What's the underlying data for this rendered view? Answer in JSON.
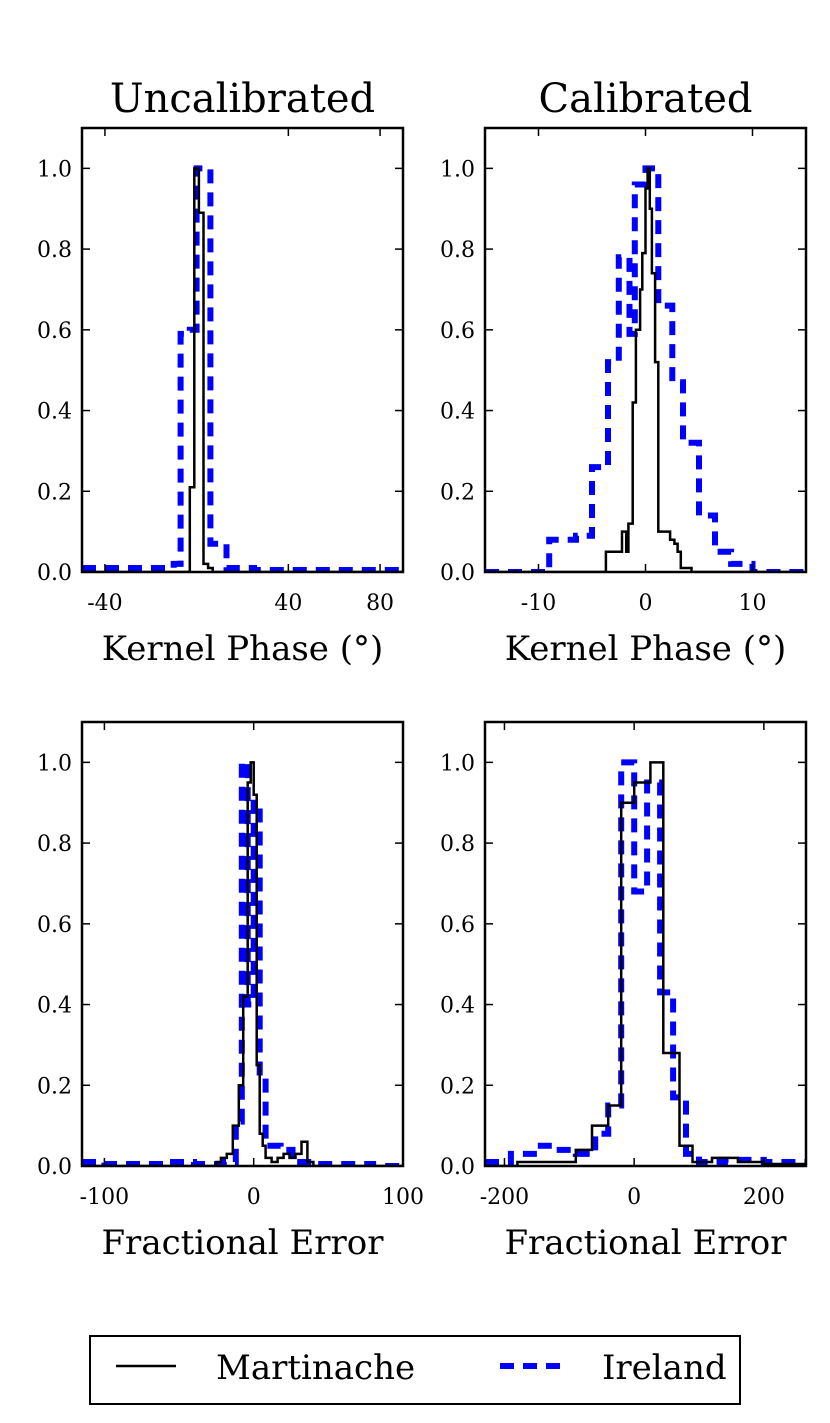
{
  "legend": {
    "martinache_label": "Martinache",
    "ireland_label": "Ireland"
  },
  "colors": {
    "martinache": "#000000",
    "ireland": "#0000ff"
  },
  "chart_data": [
    {
      "type": "step-histogram",
      "title": "Uncalibrated",
      "xlabel": "Kernel Phase (°)",
      "ylabel": "",
      "xlim": [
        -50,
        90
      ],
      "ylim": [
        0,
        1.1
      ],
      "xticks": [
        -40,
        40,
        80
      ],
      "xtick_labels": [
        "-40",
        "40",
        "80"
      ],
      "yticks": [
        0,
        0.2,
        0.4,
        0.6,
        0.8,
        1.0
      ],
      "ytick_labels": [
        "0.0",
        "0.2",
        "0.4",
        "0.6",
        "0.8",
        "1.0"
      ],
      "series": [
        {
          "name": "Martinache",
          "x": [
            -50,
            -3,
            -1,
            1,
            3,
            5,
            7,
            10,
            90
          ],
          "values": [
            0,
            0.21,
            1.0,
            0.89,
            0.02,
            0.01,
            0,
            0
          ]
        },
        {
          "name": "Ireland",
          "x": [
            -50,
            -10,
            -7,
            -3,
            0,
            3,
            6,
            13,
            18,
            25,
            40,
            50,
            90
          ],
          "values": [
            0.01,
            0.02,
            0.59,
            0.6,
            1.0,
            0.99,
            0.07,
            0.01,
            0.01,
            0.005,
            0.005,
            0.005
          ]
        }
      ]
    },
    {
      "type": "step-histogram",
      "title": "Calibrated",
      "xlabel": "Kernel Phase (°)",
      "ylabel": "",
      "xlim": [
        -15,
        15
      ],
      "ylim": [
        0,
        1.1
      ],
      "xticks": [
        -10,
        0,
        10
      ],
      "xtick_labels": [
        "-10",
        "0",
        "10"
      ],
      "yticks": [
        0,
        0.2,
        0.4,
        0.6,
        0.8,
        1.0
      ],
      "ytick_labels": [
        "0.0",
        "0.2",
        "0.4",
        "0.6",
        "0.8",
        "1.0"
      ],
      "series": [
        {
          "name": "Martinache",
          "x": [
            -15,
            -3.7,
            -2.2,
            -1.8,
            -1.6,
            -1.2,
            -0.9,
            -0.5,
            -0.3,
            0,
            0.2,
            0.4,
            0.6,
            0.9,
            1.2,
            2.3,
            2.7,
            3.0,
            3.3,
            4.3,
            15
          ],
          "values": [
            0,
            0.05,
            0.1,
            0.05,
            0.12,
            0.42,
            0.6,
            0.7,
            0.79,
            0.95,
            1.0,
            0.9,
            0.74,
            0.52,
            0.1,
            0.08,
            0.07,
            0.05,
            0.01,
            0
          ]
        },
        {
          "name": "Ireland",
          "x": [
            -15,
            -9,
            -6.5,
            -5,
            -3.5,
            -2.5,
            -1.5,
            -1.0,
            0,
            1.2,
            2.5,
            3.5,
            5,
            6.5,
            8,
            10,
            15
          ],
          "values": [
            0,
            0.08,
            0.09,
            0.26,
            0.52,
            0.78,
            0.59,
            0.96,
            1.0,
            0.66,
            0.47,
            0.32,
            0.14,
            0.05,
            0.02,
            0
          ]
        }
      ]
    },
    {
      "type": "step-histogram",
      "title": "",
      "xlabel": "Fractional Error",
      "ylabel": "",
      "xlim": [
        -115,
        100
      ],
      "ylim": [
        0,
        1.1
      ],
      "xticks": [
        -100,
        0,
        100
      ],
      "xtick_labels": [
        "-100",
        "0",
        "100"
      ],
      "yticks": [
        0,
        0.2,
        0.4,
        0.6,
        0.8,
        1.0
      ],
      "ytick_labels": [
        "0.0",
        "0.2",
        "0.4",
        "0.6",
        "0.8",
        "1.0"
      ],
      "series": [
        {
          "name": "Martinache",
          "x": [
            -115,
            -25,
            -22,
            -18,
            -14,
            -10,
            -7,
            -4,
            -2,
            0,
            2,
            4,
            6,
            8,
            12,
            16,
            20,
            24,
            28,
            32,
            36,
            40,
            100
          ],
          "values": [
            0,
            0.01,
            0.02,
            0.03,
            0.1,
            0.2,
            0.42,
            0.95,
            1.0,
            0.92,
            0.25,
            0.08,
            0.05,
            0.02,
            0.01,
            0.02,
            0.03,
            0.02,
            0.03,
            0.06,
            0.01,
            0
          ]
        },
        {
          "name": "Ireland",
          "x": [
            -115,
            -100,
            -80,
            -60,
            -40,
            -20,
            -12,
            -8,
            -4,
            0,
            4,
            8,
            12,
            18,
            26,
            34,
            42,
            50,
            60,
            80,
            100
          ],
          "values": [
            0.01,
            0.005,
            0.005,
            0.01,
            0.005,
            0.01,
            0.11,
            1.0,
            0.4,
            0.9,
            0.22,
            0.05,
            0.05,
            0.04,
            0.01,
            0.01,
            0.005,
            0.005,
            0.005,
            0
          ]
        }
      ]
    },
    {
      "type": "step-histogram",
      "title": "",
      "xlabel": "Fractional Error",
      "ylabel": "",
      "xlim": [
        -230,
        265
      ],
      "ylim": [
        0,
        1.1
      ],
      "xticks": [
        -200,
        0,
        200
      ],
      "xtick_labels": [
        "-200",
        "0",
        "200"
      ],
      "yticks": [
        0,
        0.2,
        0.4,
        0.6,
        0.8,
        1.0
      ],
      "ytick_labels": [
        "0.0",
        "0.2",
        "0.4",
        "0.6",
        "0.8",
        "1.0"
      ],
      "series": [
        {
          "name": "Martinache",
          "x": [
            -230,
            -180,
            -90,
            -65,
            -40,
            -20,
            0,
            25,
            45,
            70,
            90,
            120,
            160,
            200,
            265
          ],
          "values": [
            0,
            0.01,
            0.04,
            0.1,
            0.15,
            0.9,
            0.95,
            1.0,
            0.28,
            0.05,
            0.01,
            0.02,
            0.01,
            0.005
          ]
        },
        {
          "name": "Ireland",
          "x": [
            -230,
            -190,
            -150,
            -120,
            -90,
            -60,
            -40,
            -20,
            0,
            20,
            40,
            60,
            80,
            100,
            140,
            200,
            265
          ],
          "values": [
            0.01,
            0.03,
            0.05,
            0.04,
            0.03,
            0.08,
            0.15,
            1.0,
            0.68,
            0.95,
            0.43,
            0.17,
            0.03,
            0.01,
            0.015,
            0.01
          ]
        }
      ]
    }
  ]
}
